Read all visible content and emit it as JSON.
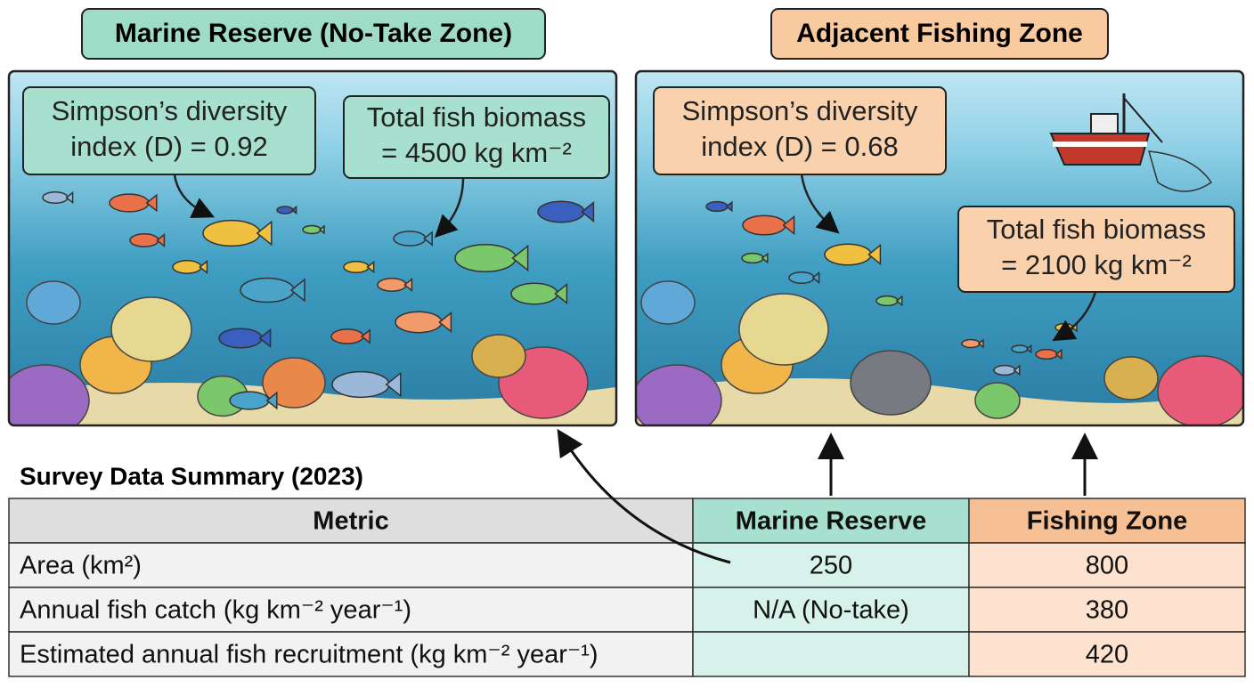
{
  "panels": [
    {
      "title": "Marine Reserve (No-Take Zone)",
      "callouts": [
        {
          "lines": [
            "Simpson’s diversity",
            "index (D) = 0.92"
          ]
        },
        {
          "lines": [
            "Total fish biomass",
            "= 4500 kg km⁻²"
          ]
        }
      ]
    },
    {
      "title": "Adjacent Fishing Zone",
      "callouts": [
        {
          "lines": [
            "Simpson’s diversity",
            "index (D) = 0.68"
          ]
        },
        {
          "lines": [
            "Total fish biomass",
            "= 2100 kg km⁻²"
          ]
        }
      ]
    }
  ],
  "table": {
    "title": "Survey Data Summary (2023)",
    "header": [
      "Metric",
      "Marine Reserve",
      "Fishing Zone"
    ],
    "rows": [
      [
        "Area (km²)",
        250,
        800
      ],
      [
        "Annual fish catch (kg km⁻² year⁻¹)",
        "N/A (No-take)",
        380
      ],
      [
        "Estimated annual fish recruitment (kg km⁻² year⁻¹)",
        null,
        420
      ]
    ]
  }
}
